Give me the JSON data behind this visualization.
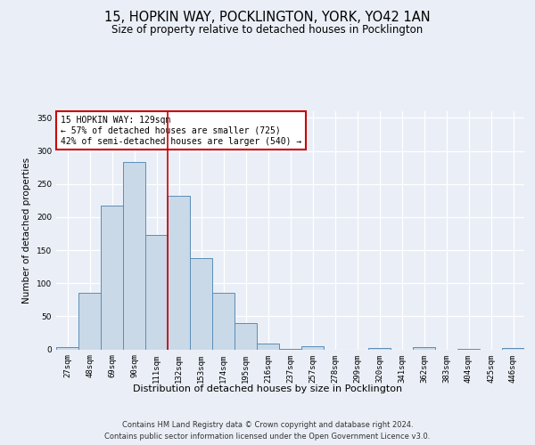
{
  "title1": "15, HOPKIN WAY, POCKLINGTON, YORK, YO42 1AN",
  "title2": "Size of property relative to detached houses in Pocklington",
  "xlabel": "Distribution of detached houses by size in Pocklington",
  "ylabel": "Number of detached properties",
  "categories": [
    "27sqm",
    "48sqm",
    "69sqm",
    "90sqm",
    "111sqm",
    "132sqm",
    "153sqm",
    "174sqm",
    "195sqm",
    "216sqm",
    "237sqm",
    "257sqm",
    "278sqm",
    "299sqm",
    "320sqm",
    "341sqm",
    "362sqm",
    "383sqm",
    "404sqm",
    "425sqm",
    "446sqm"
  ],
  "values": [
    3,
    86,
    217,
    283,
    173,
    232,
    138,
    85,
    40,
    9,
    1,
    5,
    0,
    0,
    2,
    0,
    3,
    0,
    1,
    0,
    2
  ],
  "bar_color": "#c9d9e8",
  "bar_edge_color": "#5b8db8",
  "property_line_x": 4.5,
  "annotation_text": "15 HOPKIN WAY: 129sqm\n← 57% of detached houses are smaller (725)\n42% of semi-detached houses are larger (540) →",
  "annotation_box_color": "#ffffff",
  "annotation_box_edge": "#cc0000",
  "line_color": "#cc0000",
  "footer1": "Contains HM Land Registry data © Crown copyright and database right 2024.",
  "footer2": "Contains public sector information licensed under the Open Government Licence v3.0.",
  "ylim": [
    0,
    360
  ],
  "yticks": [
    0,
    50,
    100,
    150,
    200,
    250,
    300,
    350
  ],
  "bg_color": "#eaeff7",
  "plot_bg_color": "#eaeff7",
  "grid_color": "#ffffff",
  "title1_fontsize": 10.5,
  "title2_fontsize": 8.5,
  "xlabel_fontsize": 8,
  "ylabel_fontsize": 7.5,
  "tick_fontsize": 6.5,
  "footer_fontsize": 6,
  "ann_fontsize": 7
}
